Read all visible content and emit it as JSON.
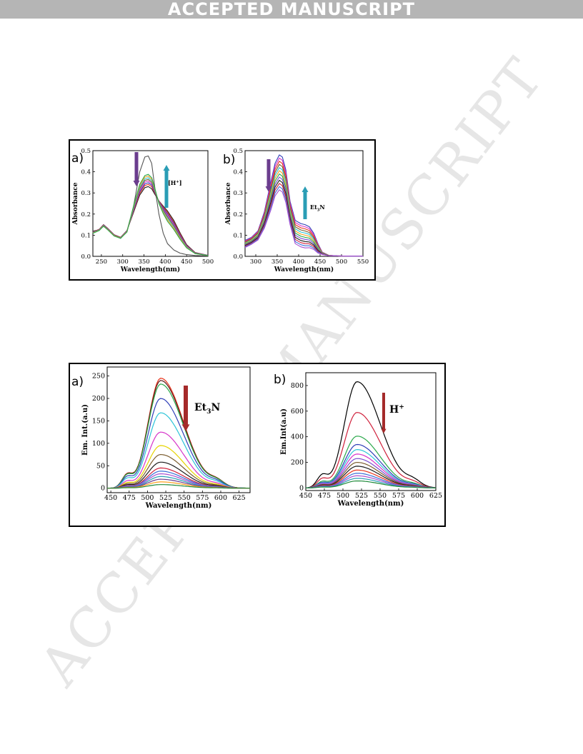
{
  "banner": {
    "text": "ACCEPTED MANUSCRIPT",
    "color": "#b5b5b5"
  },
  "watermark": {
    "text": "ACCEPTED MANUSCRIPT",
    "color": "#e6e6e6"
  },
  "chart_data": [
    {
      "panel": "a)",
      "type": "line",
      "xlabel": "Wavelength(nm)",
      "ylabel": "Absorbance",
      "xlim": [
        230,
        500
      ],
      "ylim": [
        0,
        0.5
      ],
      "xticks": [
        250,
        300,
        350,
        400,
        450,
        500
      ],
      "yticks": [
        0.0,
        0.1,
        0.2,
        0.3,
        0.4,
        0.5
      ],
      "annotations": [
        {
          "text": "[H+]",
          "arrow": "up",
          "color": "#2a9db5"
        },
        {
          "text": "",
          "arrow": "down",
          "color": "#6b3d8e"
        }
      ],
      "x": [
        230,
        245,
        255,
        265,
        280,
        295,
        310,
        325,
        340,
        352,
        360,
        368,
        375,
        385,
        395,
        405,
        420,
        435,
        450,
        470,
        500
      ],
      "series": [
        {
          "color": "#555555",
          "values": [
            0.12,
            0.125,
            0.142,
            0.126,
            0.098,
            0.085,
            0.12,
            0.23,
            0.4,
            0.47,
            0.475,
            0.44,
            0.33,
            0.2,
            0.11,
            0.06,
            0.03,
            0.015,
            0.008,
            0.004,
            0.002
          ]
        },
        {
          "color": "#1f1f1f",
          "values": [
            0.116,
            0.128,
            0.15,
            0.132,
            0.102,
            0.09,
            0.122,
            0.205,
            0.29,
            0.325,
            0.33,
            0.32,
            0.295,
            0.262,
            0.238,
            0.215,
            0.17,
            0.11,
            0.055,
            0.018,
            0.005
          ]
        },
        {
          "color": "#e8341c",
          "values": [
            0.115,
            0.127,
            0.149,
            0.131,
            0.101,
            0.089,
            0.121,
            0.21,
            0.298,
            0.335,
            0.34,
            0.33,
            0.301,
            0.262,
            0.233,
            0.208,
            0.163,
            0.105,
            0.052,
            0.017,
            0.005
          ]
        },
        {
          "color": "#2f3fb7",
          "values": [
            0.114,
            0.126,
            0.148,
            0.13,
            0.1,
            0.088,
            0.12,
            0.214,
            0.305,
            0.343,
            0.348,
            0.337,
            0.305,
            0.26,
            0.228,
            0.201,
            0.157,
            0.1,
            0.05,
            0.016,
            0.005
          ]
        },
        {
          "color": "#d633c9",
          "values": [
            0.113,
            0.126,
            0.147,
            0.129,
            0.1,
            0.088,
            0.119,
            0.218,
            0.312,
            0.351,
            0.356,
            0.344,
            0.309,
            0.258,
            0.223,
            0.194,
            0.151,
            0.096,
            0.048,
            0.016,
            0.005
          ]
        },
        {
          "color": "#7a5c2e",
          "values": [
            0.112,
            0.125,
            0.146,
            0.128,
            0.099,
            0.087,
            0.118,
            0.222,
            0.32,
            0.359,
            0.364,
            0.351,
            0.313,
            0.256,
            0.218,
            0.187,
            0.145,
            0.092,
            0.046,
            0.015,
            0.004
          ]
        },
        {
          "color": "#2cc4d8",
          "values": [
            0.111,
            0.124,
            0.145,
            0.127,
            0.098,
            0.086,
            0.117,
            0.226,
            0.327,
            0.367,
            0.372,
            0.358,
            0.317,
            0.254,
            0.213,
            0.18,
            0.139,
            0.088,
            0.044,
            0.014,
            0.004
          ]
        },
        {
          "color": "#ff9f1c",
          "values": [
            0.11,
            0.123,
            0.144,
            0.126,
            0.097,
            0.086,
            0.116,
            0.23,
            0.334,
            0.375,
            0.38,
            0.365,
            0.321,
            0.252,
            0.208,
            0.173,
            0.133,
            0.084,
            0.042,
            0.013,
            0.004
          ]
        },
        {
          "color": "#2aa84a",
          "values": [
            0.109,
            0.122,
            0.143,
            0.125,
            0.096,
            0.085,
            0.115,
            0.234,
            0.341,
            0.382,
            0.388,
            0.372,
            0.325,
            0.25,
            0.203,
            0.166,
            0.127,
            0.08,
            0.04,
            0.013,
            0.004
          ]
        }
      ]
    },
    {
      "panel": "b)",
      "type": "line",
      "xlabel": "Wavelength(nm)",
      "ylabel": "Absorbance",
      "xlim": [
        275,
        550
      ],
      "ylim": [
        0,
        0.5
      ],
      "xticks": [
        300,
        350,
        400,
        450,
        500,
        550
      ],
      "yticks": [
        0.0,
        0.1,
        0.2,
        0.3,
        0.4,
        0.5
      ],
      "annotations": [
        {
          "text": "Et3N",
          "arrow": "up",
          "color": "#2a9db5"
        },
        {
          "text": "",
          "arrow": "down",
          "color": "#6b3d8e"
        }
      ],
      "x": [
        275,
        290,
        305,
        320,
        335,
        345,
        355,
        362,
        370,
        380,
        392,
        405,
        415,
        425,
        435,
        445,
        455,
        470,
        490,
        520,
        550
      ],
      "series": [
        {
          "color": "#2f3fb7",
          "values": [
            0.075,
            0.09,
            0.12,
            0.21,
            0.35,
            0.44,
            0.48,
            0.47,
            0.41,
            0.26,
            0.17,
            0.155,
            0.15,
            0.14,
            0.11,
            0.06,
            0.02,
            0.005,
            0.002,
            0.001,
            0.001
          ]
        },
        {
          "color": "#d633c9",
          "values": [
            0.072,
            0.087,
            0.117,
            0.203,
            0.338,
            0.426,
            0.465,
            0.454,
            0.396,
            0.25,
            0.16,
            0.145,
            0.14,
            0.131,
            0.103,
            0.056,
            0.019,
            0.005,
            0.002,
            0.001,
            0.001
          ]
        },
        {
          "color": "#e8341c",
          "values": [
            0.069,
            0.084,
            0.113,
            0.196,
            0.326,
            0.412,
            0.45,
            0.439,
            0.382,
            0.24,
            0.15,
            0.135,
            0.13,
            0.122,
            0.096,
            0.052,
            0.018,
            0.005,
            0.002,
            0.001,
            0.001
          ]
        },
        {
          "color": "#7a5c2e",
          "values": [
            0.066,
            0.081,
            0.109,
            0.189,
            0.314,
            0.398,
            0.435,
            0.424,
            0.368,
            0.23,
            0.14,
            0.125,
            0.12,
            0.113,
            0.089,
            0.048,
            0.017,
            0.004,
            0.002,
            0.001,
            0.001
          ]
        },
        {
          "color": "#2cc4d8",
          "values": [
            0.063,
            0.078,
            0.105,
            0.182,
            0.302,
            0.384,
            0.42,
            0.409,
            0.354,
            0.22,
            0.13,
            0.115,
            0.11,
            0.104,
            0.082,
            0.044,
            0.016,
            0.004,
            0.002,
            0.001,
            0.001
          ]
        },
        {
          "color": "#ff9f1c",
          "values": [
            0.06,
            0.075,
            0.101,
            0.175,
            0.29,
            0.37,
            0.405,
            0.394,
            0.34,
            0.21,
            0.12,
            0.105,
            0.1,
            0.095,
            0.075,
            0.04,
            0.015,
            0.004,
            0.002,
            0.001,
            0.001
          ]
        },
        {
          "color": "#2aa84a",
          "values": [
            0.057,
            0.072,
            0.097,
            0.168,
            0.278,
            0.356,
            0.39,
            0.379,
            0.326,
            0.2,
            0.11,
            0.095,
            0.09,
            0.086,
            0.068,
            0.036,
            0.014,
            0.004,
            0.002,
            0.001,
            0.001
          ]
        },
        {
          "color": "#7b4fd0",
          "values": [
            0.054,
            0.069,
            0.093,
            0.161,
            0.266,
            0.342,
            0.375,
            0.364,
            0.312,
            0.19,
            0.1,
            0.085,
            0.08,
            0.077,
            0.061,
            0.032,
            0.013,
            0.003,
            0.002,
            0.001,
            0.001
          ]
        },
        {
          "color": "#1f1f1f",
          "values": [
            0.051,
            0.066,
            0.089,
            0.154,
            0.254,
            0.328,
            0.36,
            0.349,
            0.298,
            0.18,
            0.09,
            0.075,
            0.07,
            0.068,
            0.054,
            0.028,
            0.012,
            0.003,
            0.002,
            0.001,
            0.001
          ]
        },
        {
          "color": "#cf1f3a",
          "values": [
            0.048,
            0.063,
            0.085,
            0.147,
            0.242,
            0.314,
            0.345,
            0.334,
            0.284,
            0.17,
            0.08,
            0.065,
            0.06,
            0.059,
            0.047,
            0.024,
            0.011,
            0.003,
            0.002,
            0.001,
            0.001
          ]
        },
        {
          "color": "#3b6fd8",
          "values": [
            0.045,
            0.06,
            0.081,
            0.14,
            0.23,
            0.3,
            0.33,
            0.319,
            0.27,
            0.16,
            0.07,
            0.055,
            0.05,
            0.05,
            0.04,
            0.02,
            0.01,
            0.003,
            0.002,
            0.001,
            0.001
          ]
        },
        {
          "color": "#a84fd0",
          "values": [
            0.042,
            0.057,
            0.077,
            0.133,
            0.218,
            0.286,
            0.315,
            0.304,
            0.256,
            0.15,
            0.06,
            0.045,
            0.04,
            0.041,
            0.033,
            0.016,
            0.009,
            0.003,
            0.002,
            0.001,
            0.001
          ]
        }
      ]
    },
    {
      "panel": "a)",
      "type": "line",
      "xlabel": "Wavelength(nm)",
      "ylabel": "Em. Int.(a.u)",
      "xlim": [
        445,
        640
      ],
      "ylim": [
        -10,
        270
      ],
      "xticks": [
        450,
        475,
        500,
        525,
        550,
        575,
        600,
        625
      ],
      "yticks": [
        0,
        50,
        100,
        150,
        200,
        250
      ],
      "annotations": [
        {
          "text": "Et3N",
          "arrow": "down",
          "color": "#a52a2a"
        }
      ],
      "peak_x": 518,
      "peaks": [
        245,
        240,
        232,
        200,
        168,
        125,
        95,
        75,
        58,
        45,
        38,
        32,
        26,
        20,
        14,
        8
      ],
      "colors": [
        "#e8341c",
        "#5c1a1a",
        "#2aa84a",
        "#2f3fb7",
        "#2cc4d8",
        "#d633c9",
        "#e6d400",
        "#7a5c2e",
        "#1f1f1f",
        "#cf1f3a",
        "#3b6fd8",
        "#a84fd0",
        "#2a9db5",
        "#6b3d8e",
        "#ff9f1c",
        "#1f8a3a"
      ]
    },
    {
      "panel": "b)",
      "type": "line",
      "xlabel": "Wavelength(nm)",
      "ylabel": "Em.Int(a.u)",
      "xlim": [
        450,
        625
      ],
      "ylim": [
        -20,
        900
      ],
      "xticks": [
        450,
        475,
        500,
        525,
        550,
        575,
        600,
        625
      ],
      "yticks": [
        0,
        200,
        400,
        600,
        800
      ],
      "annotations": [
        {
          "text": "H+",
          "arrow": "down",
          "color": "#a52a2a"
        }
      ],
      "peak_x": 519,
      "peaks": [
        830,
        590,
        405,
        340,
        300,
        265,
        230,
        200,
        170,
        140,
        115,
        95,
        75,
        55
      ],
      "colors": [
        "#000000",
        "#cf1f3a",
        "#2aa84a",
        "#2f3fb7",
        "#2cc4d8",
        "#d633c9",
        "#7b4fd0",
        "#7a5c2e",
        "#1f1f1f",
        "#e8341c",
        "#3b6fd8",
        "#a84fd0",
        "#2a9db5",
        "#1f8a3a"
      ]
    }
  ]
}
